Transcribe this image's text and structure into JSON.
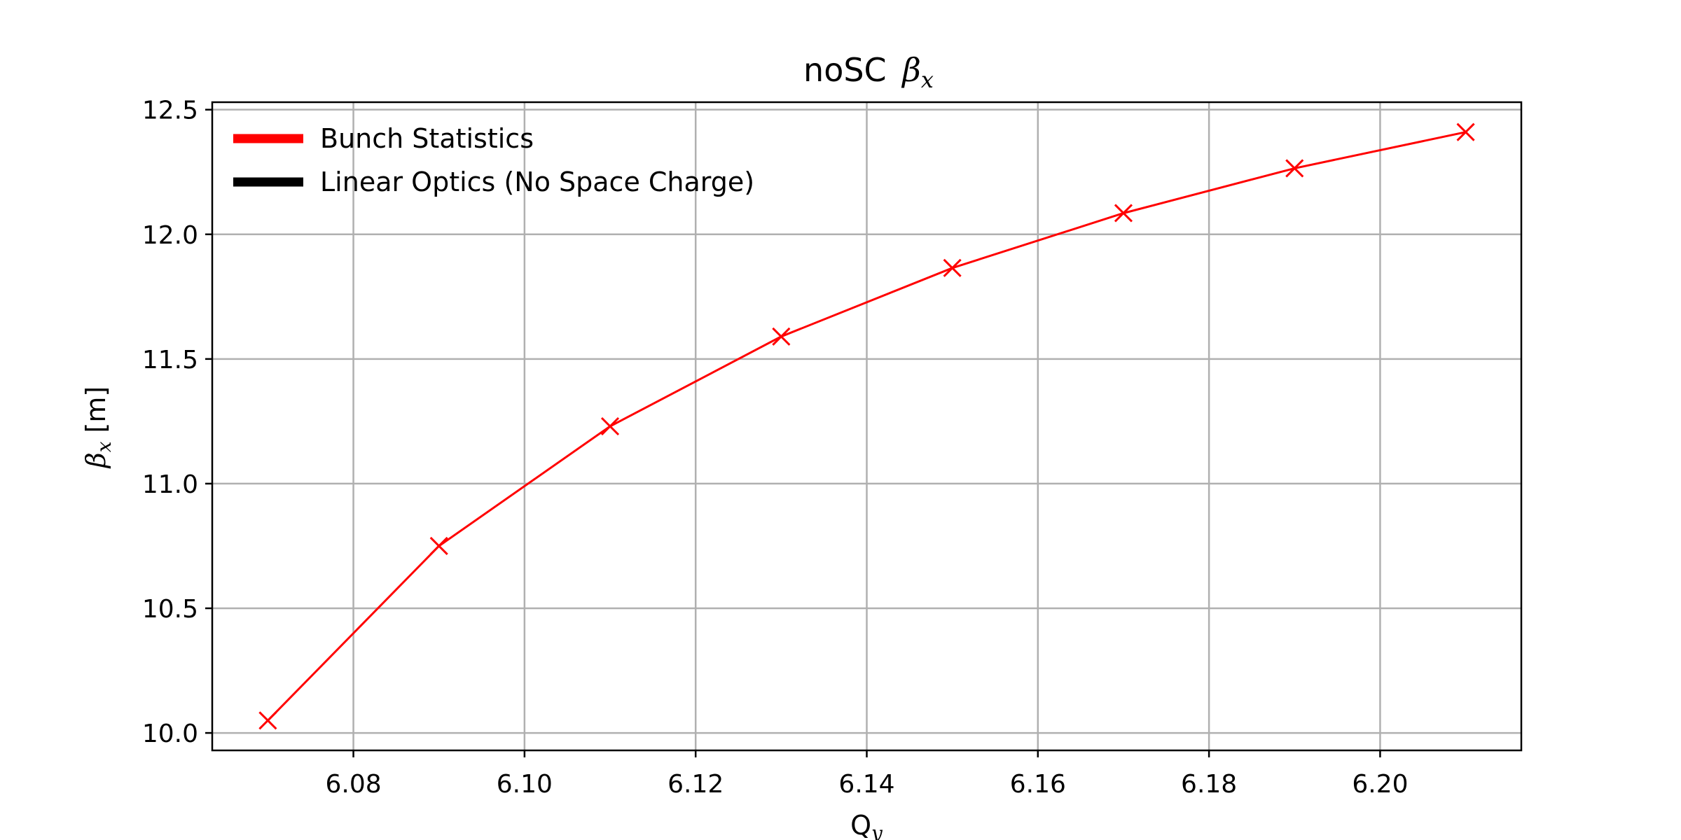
{
  "chart_data": {
    "type": "line",
    "title_prefix": "noSC",
    "title_symbol": "β",
    "title_subscript": "x",
    "xlabel_main": "Q",
    "xlabel_subscript": "y",
    "ylabel_symbol": "β",
    "ylabel_subscript": "x",
    "ylabel_unit": "[m]",
    "xlim": [
      6.0635,
      6.2165
    ],
    "ylim": [
      9.93,
      12.53
    ],
    "x_ticks": [
      6.08,
      6.1,
      6.12,
      6.14,
      6.16,
      6.18,
      6.2
    ],
    "x_tick_labels": [
      "6.08",
      "6.10",
      "6.12",
      "6.14",
      "6.16",
      "6.18",
      "6.20"
    ],
    "y_ticks": [
      10.0,
      10.5,
      11.0,
      11.5,
      12.0,
      12.5
    ],
    "y_tick_labels": [
      "10.0",
      "10.5",
      "11.0",
      "11.5",
      "12.0",
      "12.5"
    ],
    "grid": true,
    "legend_position": "upper-left",
    "legend": [
      {
        "label": "Bunch Statistics",
        "color": "#ff0000"
      },
      {
        "label": "Linear Optics (No Space Charge)",
        "color": "#000000"
      }
    ],
    "series": [
      {
        "name": "Bunch Statistics",
        "color": "#ff0000",
        "marker": "x",
        "x": [
          6.07,
          6.09,
          6.11,
          6.13,
          6.15,
          6.17,
          6.19,
          6.21
        ],
        "y": [
          10.05,
          10.75,
          11.23,
          11.59,
          11.865,
          12.085,
          12.265,
          12.41
        ]
      }
    ]
  }
}
